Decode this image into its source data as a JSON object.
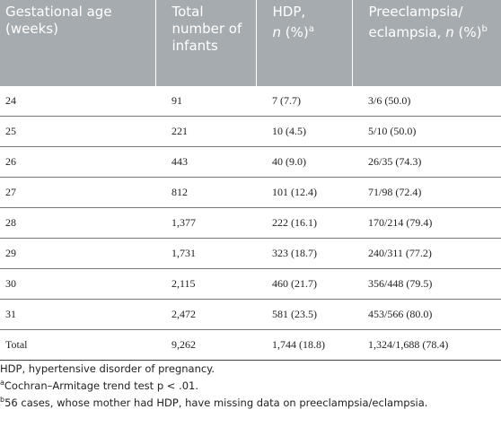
{
  "table": {
    "header": [
      {
        "text": "Gestational age (weeks)"
      },
      {
        "text": "Total number of infants"
      },
      {
        "before": "HDP,",
        "italic": "n",
        "after": "(%)",
        "sup": "a"
      },
      {
        "before": "Preeclampsia/ eclampsia,",
        "italic": "n",
        "after": "(%)",
        "sup": "b"
      }
    ],
    "rows": [
      [
        "24",
        "91",
        "7 (7.7)",
        "3/6 (50.0)"
      ],
      [
        "25",
        "221",
        "10 (4.5)",
        "5/10 (50.0)"
      ],
      [
        "26",
        "443",
        "40 (9.0)",
        "26/35 (74.3)"
      ],
      [
        "27",
        "812",
        "101 (12.4)",
        "71/98 (72.4)"
      ],
      [
        "28",
        "1,377",
        "222 (16.1)",
        "170/214 (79.4)"
      ],
      [
        "29",
        "1,731",
        "323 (18.7)",
        "240/311 (77.2)"
      ],
      [
        "30",
        "2,115",
        "460 (21.7)",
        "356/448 (79.5)"
      ],
      [
        "31",
        "2,472",
        "581 (23.5)",
        "453/566 (80.0)"
      ],
      [
        "Total",
        "9,262",
        "1,744 (18.8)",
        "1,324/1,688 (78.4)"
      ]
    ]
  },
  "footnotes": [
    {
      "text": "HDP, hypertensive disorder of pregnancy."
    },
    {
      "mark": "a",
      "text": "Cochran–Armitage trend test p < .01."
    },
    {
      "mark": "b",
      "text": "56 cases, whose mother had HDP, have missing data on preeclampsia/eclampsia."
    }
  ]
}
